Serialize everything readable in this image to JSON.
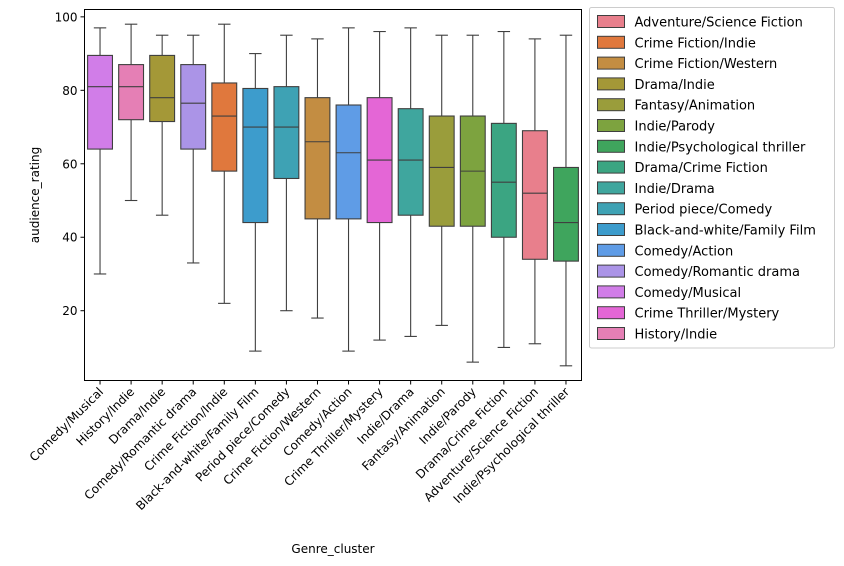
{
  "chart_data": {
    "type": "box",
    "title": "",
    "xlabel": "Genre_cluster",
    "ylabel": "audience_rating",
    "ylim": [
      1,
      102
    ],
    "yticks": [
      20,
      40,
      60,
      80,
      100
    ],
    "grid": false,
    "legend_position": "outside-right",
    "boxes": [
      {
        "category": "Comedy/Musical",
        "whisker_low": 30,
        "q1": 64,
        "median": 81,
        "q3": 89.5,
        "whisker_high": 97,
        "color": "#d17de8"
      },
      {
        "category": "History/Indie",
        "whisker_low": 50,
        "q1": 72,
        "median": 81,
        "q3": 87,
        "whisker_high": 98,
        "color": "#e57fb5"
      },
      {
        "category": "Drama/Indie",
        "whisker_low": 46,
        "q1": 71.5,
        "median": 78,
        "q3": 89.5,
        "whisker_high": 95,
        "color": "#a49837"
      },
      {
        "category": "Comedy/Romantic drama",
        "whisker_low": 33,
        "q1": 64,
        "median": 76.5,
        "q3": 87,
        "whisker_high": 95,
        "color": "#ab94e7"
      },
      {
        "category": "Crime Fiction/Indie",
        "whisker_low": 22,
        "q1": 58,
        "median": 73,
        "q3": 82,
        "whisker_high": 98,
        "color": "#e0783d"
      },
      {
        "category": "Black-and-white/Family Film",
        "whisker_low": 9,
        "q1": 44,
        "median": 70,
        "q3": 80.5,
        "whisker_high": 90,
        "color": "#3d9ccc"
      },
      {
        "category": "Period piece/Comedy",
        "whisker_low": 20,
        "q1": 56,
        "median": 70,
        "q3": 81,
        "whisker_high": 95,
        "color": "#3ea2b4"
      },
      {
        "category": "Crime Fiction/Western",
        "whisker_low": 18,
        "q1": 45,
        "median": 66,
        "q3": 78,
        "whisker_high": 94,
        "color": "#c38d42"
      },
      {
        "category": "Comedy/Action",
        "whisker_low": 9,
        "q1": 45,
        "median": 63,
        "q3": 76,
        "whisker_high": 97,
        "color": "#5f9ce6"
      },
      {
        "category": "Crime Thriller/Mystery",
        "whisker_low": 12,
        "q1": 44,
        "median": 61,
        "q3": 78,
        "whisker_high": 96,
        "color": "#e466d6"
      },
      {
        "category": "Indie/Drama",
        "whisker_low": 13,
        "q1": 46,
        "median": 61,
        "q3": 75,
        "whisker_high": 97,
        "color": "#3fa69e"
      },
      {
        "category": "Fantasy/Animation",
        "whisker_low": 16,
        "q1": 43,
        "median": 59,
        "q3": 73,
        "whisker_high": 95,
        "color": "#9a9d3b"
      },
      {
        "category": "Indie/Parody",
        "whisker_low": 6,
        "q1": 43,
        "median": 58,
        "q3": 73,
        "whisker_high": 95,
        "color": "#7da33f"
      },
      {
        "category": "Drama/Crime Fiction",
        "whisker_low": 10,
        "q1": 40,
        "median": 55,
        "q3": 71,
        "whisker_high": 96,
        "color": "#3ba582"
      },
      {
        "category": "Adventure/Science Fiction",
        "whisker_low": 11,
        "q1": 34,
        "median": 52,
        "q3": 69,
        "whisker_high": 94,
        "color": "#e87f8c"
      },
      {
        "category": "Indie/Psychological thriller",
        "whisker_low": 5,
        "q1": 33.5,
        "median": 44,
        "q3": 59,
        "whisker_high": 95,
        "color": "#3fa55d"
      }
    ],
    "legend": [
      {
        "label": "Adventure/Science Fiction",
        "color": "#e87f8c"
      },
      {
        "label": "Crime Fiction/Indie",
        "color": "#e0783d"
      },
      {
        "label": "Crime Fiction/Western",
        "color": "#c38d42"
      },
      {
        "label": "Drama/Indie",
        "color": "#a49837"
      },
      {
        "label": "Fantasy/Animation",
        "color": "#9a9d3b"
      },
      {
        "label": "Indie/Parody",
        "color": "#7da33f"
      },
      {
        "label": "Indie/Psychological thriller",
        "color": "#3fa55d"
      },
      {
        "label": "Drama/Crime Fiction",
        "color": "#3ba582"
      },
      {
        "label": "Indie/Drama",
        "color": "#3fa69e"
      },
      {
        "label": "Period piece/Comedy",
        "color": "#3ea2b4"
      },
      {
        "label": "Black-and-white/Family Film",
        "color": "#3d9ccc"
      },
      {
        "label": "Comedy/Action",
        "color": "#5f9ce6"
      },
      {
        "label": "Comedy/Romantic drama",
        "color": "#ab94e7"
      },
      {
        "label": "Comedy/Musical",
        "color": "#d17de8"
      },
      {
        "label": "Crime Thriller/Mystery",
        "color": "#e466d6"
      },
      {
        "label": "History/Indie",
        "color": "#e57fb5"
      }
    ]
  }
}
